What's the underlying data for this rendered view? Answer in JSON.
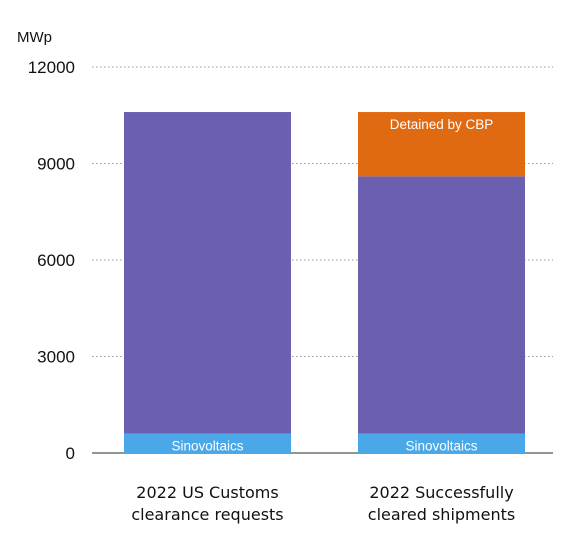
{
  "chart_data": {
    "type": "bar",
    "stacked": true,
    "ylabel": "MWp",
    "ylim": [
      0,
      12000
    ],
    "yticks": [
      "0",
      "3000",
      "6000",
      "9000",
      "12000"
    ],
    "grid": true,
    "categories": [
      [
        "2022 US Customs",
        "clearance requests"
      ],
      [
        "2022 Successfully",
        "cleared shipments"
      ]
    ],
    "series": [
      {
        "name": "Sinovoltaics",
        "color": "#4aa8e8",
        "values": [
          600,
          600
        ]
      },
      {
        "name": "",
        "color": "#6b5fb0",
        "values": [
          10000,
          8000
        ]
      },
      {
        "name": "Detained by CBP",
        "color": "#e06a12",
        "values": [
          0,
          2000
        ]
      }
    ]
  }
}
